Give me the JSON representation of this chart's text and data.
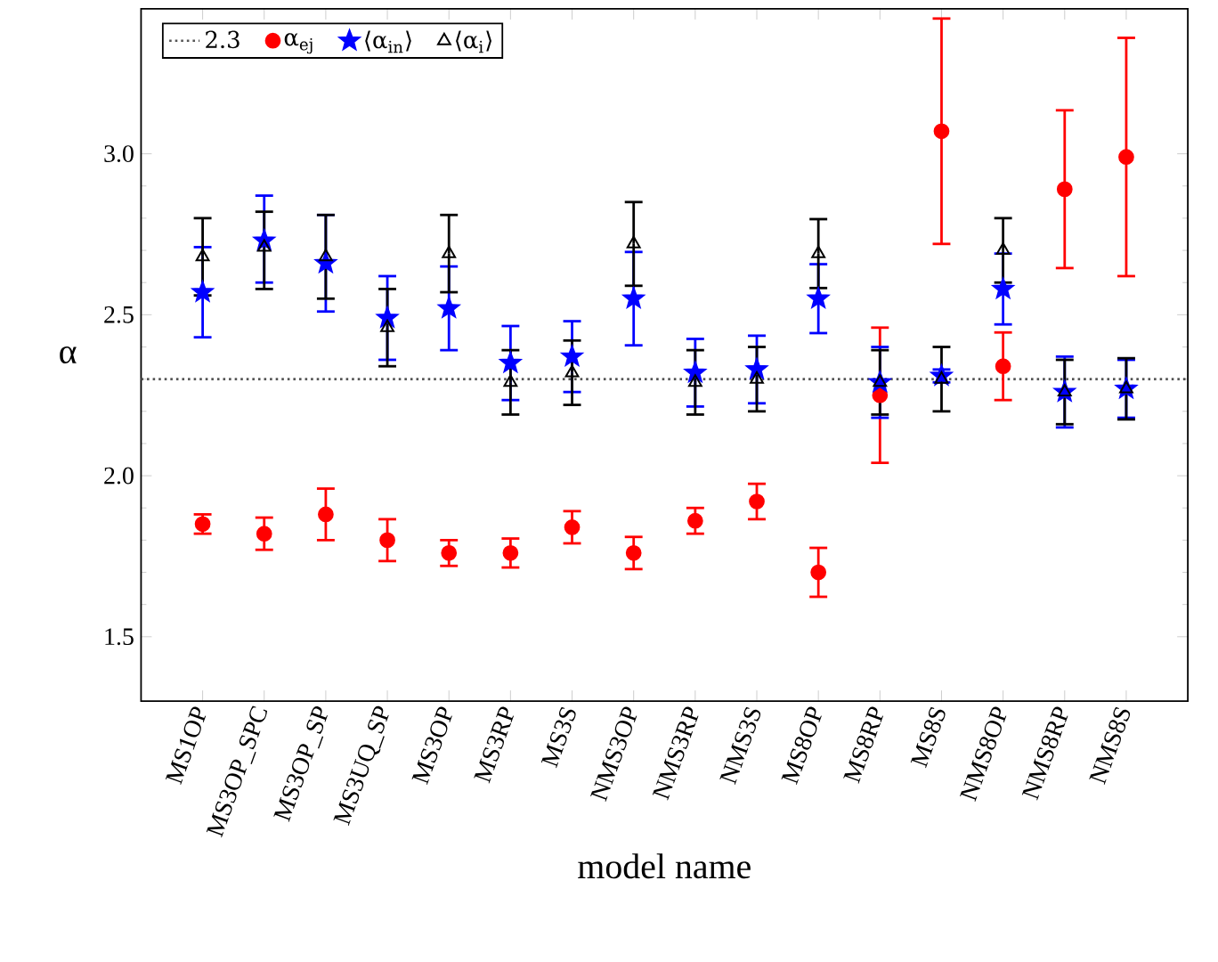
{
  "chart_data": {
    "type": "scatter",
    "xlabel": "model name",
    "ylabel": "α",
    "categories": [
      "MS1OP",
      "MS3OP_SPC",
      "MS3OP_SP",
      "MS3UQ_SP",
      "MS3OP",
      "MS3RP",
      "MS3S",
      "NMS3OP",
      "NMS3RP",
      "NMS3S",
      "MS8OP",
      "MS8RP",
      "MS8S",
      "NMS8OP",
      "NMS8RP",
      "NMS8S"
    ],
    "ylim": [
      1.3,
      3.45
    ],
    "yticks": [
      1.5,
      {
        "value": 2,
        "label": "2.0"
      },
      2.5,
      {
        "value": 3,
        "label": "3.0"
      }
    ],
    "grid": false,
    "legend": "top left",
    "ref_lines": [
      {
        "axis": "y",
        "value": 2.3,
        "label": "2.3",
        "color": "#555555",
        "line_style": "dotted"
      }
    ],
    "series": [
      {
        "name": "α$_{ej}$",
        "color": "#ff0000",
        "marker": "circle",
        "values": [
          1.85,
          1.82,
          1.88,
          1.8,
          1.76,
          1.76,
          1.84,
          1.76,
          1.86,
          1.92,
          1.7,
          2.25,
          3.07,
          2.34,
          2.89,
          2.99
        ],
        "errors": [
          0.03,
          0.05,
          0.08,
          0.065,
          0.04,
          0.045,
          0.05,
          0.05,
          0.04,
          0.055,
          0.076,
          0.21,
          0.35,
          0.105,
          0.245,
          0.37
        ]
      },
      {
        "name": "⟨α$_{in}$⟩",
        "color": "#0000ff",
        "marker": "star",
        "values": [
          2.57,
          2.73,
          2.66,
          2.49,
          2.52,
          2.35,
          2.37,
          2.55,
          2.32,
          2.33,
          2.55,
          2.29,
          2.31,
          2.58,
          2.26,
          2.27
        ],
        "errors": [
          0.14,
          [
            2.6,
            2.87
          ],
          0.15,
          0.13,
          0.13,
          0.115,
          0.11,
          0.145,
          0.105,
          0.105,
          0.107,
          0.11,
          0.02,
          0.11,
          0.11,
          0.09
        ]
      },
      {
        "name": "⟨α$_{i}$⟩",
        "color": "#000000",
        "marker": "triangle",
        "values": [
          2.68,
          2.71,
          2.68,
          2.46,
          2.69,
          2.29,
          2.32,
          2.72,
          2.29,
          2.3,
          2.69,
          2.29,
          2.3,
          2.7,
          2.26,
          2.27
        ],
        "errors": [
          0.12,
          [
            2.58,
            2.82
          ],
          0.13,
          0.12,
          0.12,
          0.1,
          0.1,
          0.13,
          0.1,
          0.1,
          0.107,
          0.1,
          0.1,
          0.1,
          0.1,
          0.095
        ]
      }
    ]
  }
}
